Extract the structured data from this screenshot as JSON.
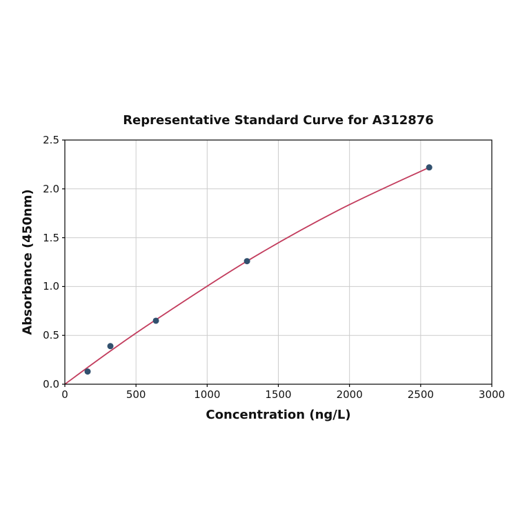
{
  "page": {
    "background": "#ffffff"
  },
  "chart_data": {
    "type": "scatter",
    "title": "Representative Standard Curve for A312876",
    "xlabel": "Concentration (ng/L)",
    "ylabel": "Absorbance (450nm)",
    "xlim": [
      0,
      3000
    ],
    "ylim": [
      0,
      2.5
    ],
    "grid": true,
    "legend": null,
    "x_ticks": {
      "values": [
        0,
        500,
        1000,
        1500,
        2000,
        2500,
        3000
      ],
      "labels": [
        "0",
        "500",
        "1000",
        "1500",
        "2000",
        "2500",
        "3000"
      ]
    },
    "y_ticks": {
      "values": [
        0,
        0.5,
        1.0,
        1.5,
        2.0,
        2.5
      ],
      "labels": [
        "0.0",
        "0.5",
        "1.0",
        "1.5",
        "2.0",
        "2.5"
      ]
    },
    "series": [
      {
        "name": "standard-points",
        "type": "scatter",
        "x": [
          160,
          320,
          640,
          1280,
          2560
        ],
        "y": [
          0.13,
          0.39,
          0.65,
          1.26,
          2.22
        ],
        "color": "#31506e"
      },
      {
        "name": "fit-curve",
        "type": "line",
        "x": [
          0,
          320,
          640,
          1280,
          1920,
          2560
        ],
        "y": [
          0.0,
          0.34,
          0.66,
          1.26,
          1.78,
          2.22
        ],
        "color": "#c23b5c"
      }
    ],
    "colors": {
      "grid": "#cccccc",
      "axis": "#000000",
      "text": "#111111"
    }
  }
}
